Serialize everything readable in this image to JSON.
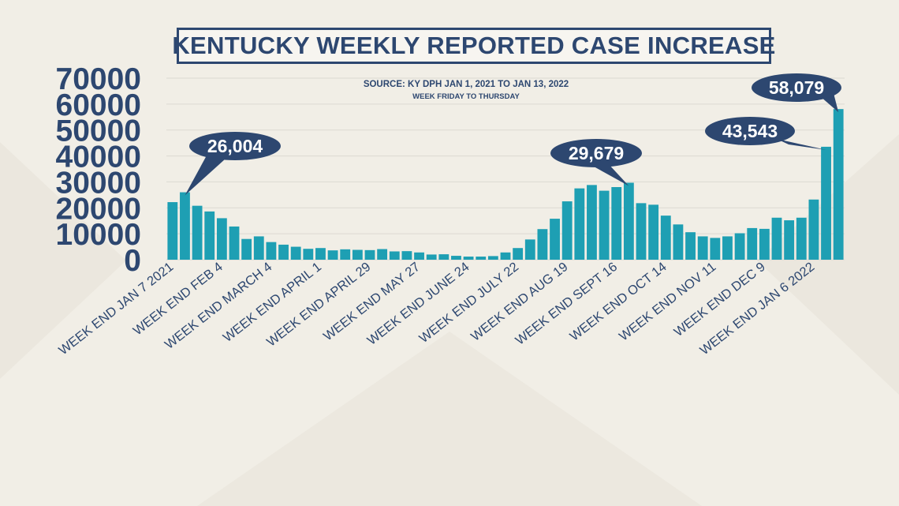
{
  "title": "KENTUCKY WEEKLY REPORTED CASE INCREASE",
  "source_line1": "SOURCE: KY DPH JAN 1, 2021 TO JAN 13, 2022",
  "source_line2": "WEEK FRIDAY TO THURSDAY",
  "colors": {
    "bar": "#1e9fb3",
    "title": "#2d4770",
    "callout": "#2d4770",
    "callout_text": "#ffffff",
    "axis_text": "#2d4770",
    "background": "#f1eee6",
    "grid": "#dcd9d2"
  },
  "chart_data": {
    "type": "bar",
    "title": "KENTUCKY WEEKLY REPORTED CASE INCREASE",
    "xlabel": "",
    "ylabel": "",
    "ylim": [
      0,
      70000
    ],
    "yticks": [
      0,
      10000,
      20000,
      30000,
      40000,
      50000,
      60000,
      70000
    ],
    "grid": true,
    "legend": "none",
    "x_tick_labels": [
      "WEEK END JAN 7 2021",
      "WEEK END FEB 4",
      "WEEK END MARCH 4",
      "WEEK END APRIL 1",
      "WEEK END APRIL 29",
      "WEEK END MAY 27",
      "WEEK END JUNE 24",
      "WEEK END JULY 22",
      "WEEK END AUG 19",
      "WEEK END SEPT 16",
      "WEEK END OCT 14",
      "WEEK END NOV 11",
      "WEEK END DEC 9",
      "WEEK END JAN 6 2022"
    ],
    "x_tick_bar_index": [
      0,
      4,
      8,
      12,
      16,
      20,
      24,
      28,
      32,
      36,
      40,
      44,
      48,
      52
    ],
    "values": [
      22200,
      26004,
      20800,
      18600,
      16000,
      12800,
      8000,
      9000,
      6800,
      5800,
      5000,
      4200,
      4500,
      3600,
      4000,
      3800,
      3700,
      4100,
      3200,
      3300,
      2800,
      2000,
      2100,
      1500,
      1200,
      1200,
      1400,
      2800,
      4500,
      7800,
      11800,
      15800,
      22500,
      27500,
      28800,
      26600,
      28000,
      29679,
      21800,
      21200,
      17000,
      13600,
      10600,
      9000,
      8400,
      9000,
      10200,
      12200,
      11900,
      16200,
      15200,
      16200,
      23200,
      43543,
      58079
    ],
    "annotations": [
      {
        "label": "26,004",
        "bar_index": 1
      },
      {
        "label": "29,679",
        "bar_index": 37
      },
      {
        "label": "43,543",
        "bar_index": 53
      },
      {
        "label": "58,079",
        "bar_index": 54
      }
    ]
  }
}
